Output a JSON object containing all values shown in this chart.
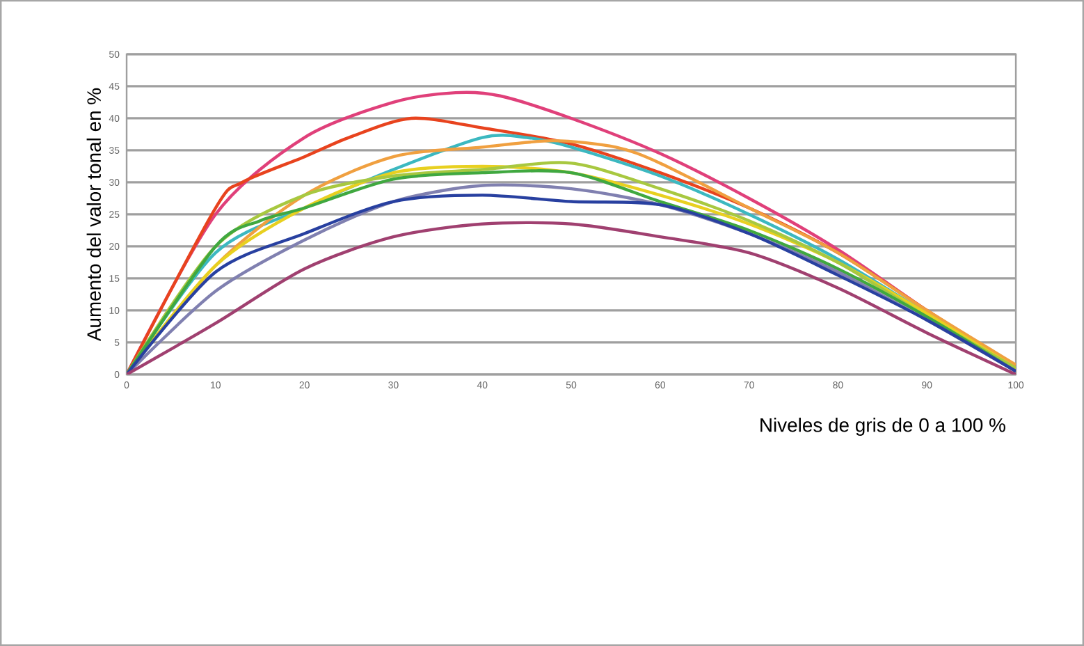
{
  "chart_data": {
    "type": "line",
    "xlabel": "Niveles de gris de 0 a 100 %",
    "ylabel": "Aumento del valor tonal en %",
    "x": [
      0,
      10,
      20,
      30,
      40,
      50,
      60,
      70,
      80,
      90,
      100
    ],
    "xlim": [
      0,
      100
    ],
    "ylim": [
      0,
      50
    ],
    "xticks": [
      0,
      10,
      20,
      30,
      40,
      50,
      60,
      70,
      80,
      90,
      100
    ],
    "yticks": [
      0,
      5,
      10,
      15,
      20,
      25,
      30,
      35,
      40,
      45,
      50
    ],
    "grid": "y",
    "marker": "none",
    "line_style": "solid",
    "series": [
      {
        "color": "#e0407a",
        "x": [
          0,
          10,
          20,
          30,
          37,
          42,
          50,
          60,
          70,
          80,
          90,
          100
        ],
        "values": [
          0,
          25,
          37,
          42.5,
          44,
          43.5,
          40,
          34.5,
          27.5,
          19.5,
          10,
          1
        ]
      },
      {
        "color": "#e8431e",
        "x": [
          0,
          10,
          13,
          20,
          25,
          32,
          40,
          50,
          60,
          70,
          80,
          90,
          100
        ],
        "values": [
          0,
          26,
          30,
          34,
          37,
          40,
          38.5,
          36,
          31.5,
          26,
          19,
          10,
          1
        ]
      },
      {
        "color": "#3cb8c0",
        "x": [
          0,
          10,
          20,
          30,
          40,
          45,
          50,
          60,
          70,
          80,
          90,
          100
        ],
        "values": [
          0,
          19,
          26,
          32,
          37,
          37,
          35.5,
          31,
          25,
          18,
          9.5,
          1
        ]
      },
      {
        "color": "#f0a040",
        "x": [
          0,
          10,
          20,
          30,
          40,
          48,
          55,
          60,
          70,
          80,
          90,
          100
        ],
        "values": [
          0,
          17,
          28,
          34,
          35.5,
          36.5,
          35.5,
          33,
          26,
          19,
          10,
          1.5
        ]
      },
      {
        "color": "#e8d020",
        "values": [
          0,
          17,
          26,
          31.5,
          32.5,
          31.5,
          28,
          23.5,
          17.5,
          9.5,
          1
        ]
      },
      {
        "color": "#a8c840",
        "values": [
          0,
          20,
          28,
          31,
          32,
          33,
          29,
          24,
          17.5,
          9,
          1
        ]
      },
      {
        "color": "#40a840",
        "x": [
          0,
          10,
          15,
          20,
          30,
          40,
          50,
          60,
          70,
          80,
          90,
          100
        ],
        "values": [
          0,
          20,
          24,
          26,
          30.5,
          31.5,
          31.5,
          27,
          22.5,
          16.5,
          9,
          0.5
        ]
      },
      {
        "color": "#8080b0",
        "values": [
          0,
          13,
          21,
          27,
          29.5,
          29,
          26.5,
          22,
          16,
          8.5,
          0.5
        ]
      },
      {
        "color": "#2840a0",
        "values": [
          0,
          16,
          22,
          27,
          28,
          27,
          26.5,
          22,
          15.5,
          8.5,
          0.5
        ]
      },
      {
        "color": "#a04070",
        "values": [
          0,
          8,
          16.5,
          21.5,
          23.5,
          23.5,
          21.5,
          19,
          13.5,
          6.5,
          0
        ]
      }
    ]
  }
}
